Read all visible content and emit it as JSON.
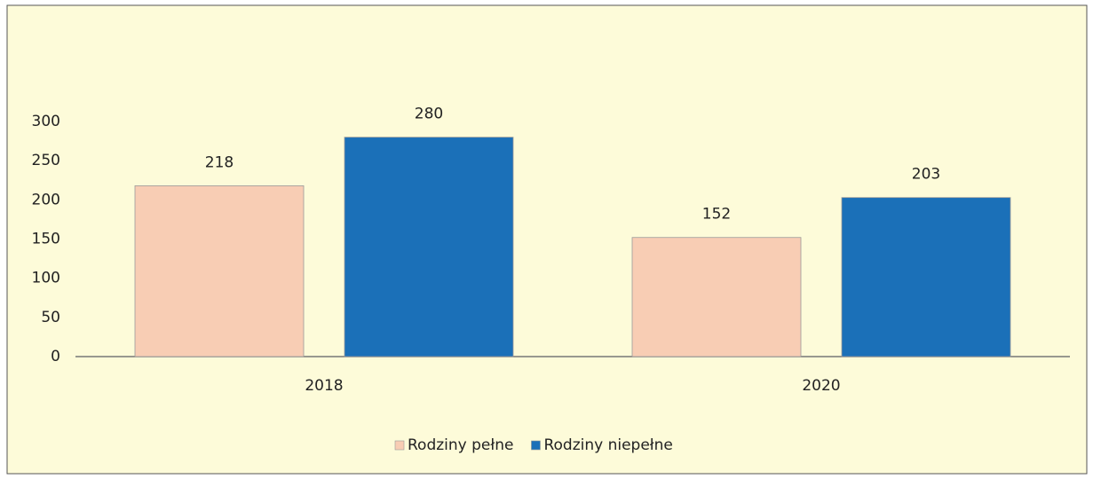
{
  "chart_data": {
    "type": "bar",
    "categories": [
      "2018",
      "2020"
    ],
    "series": [
      {
        "name": "Rodziny pełne",
        "color": "#f8cdb4",
        "values": [
          218,
          152
        ]
      },
      {
        "name": "Rodziny niepełne",
        "color": "#1b70b8",
        "values": [
          280,
          203
        ]
      }
    ],
    "ylim": [
      0,
      300
    ],
    "yticks": [
      0,
      50,
      100,
      150,
      200,
      250,
      300
    ],
    "grid": false,
    "legend": "bottom"
  }
}
